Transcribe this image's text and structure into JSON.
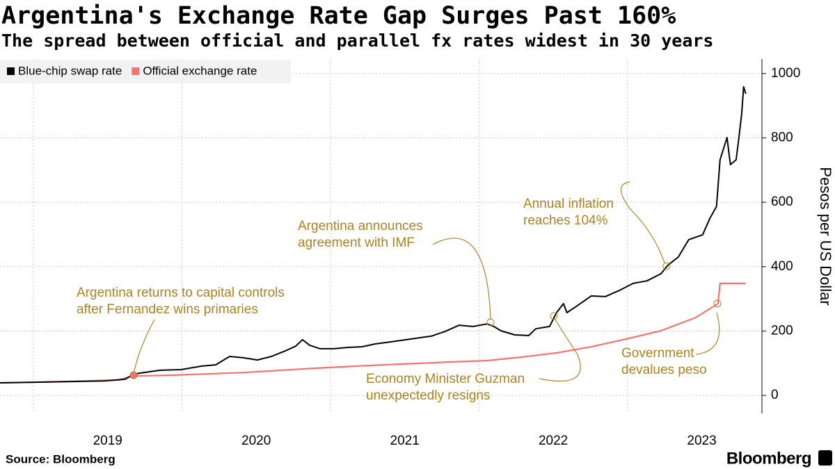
{
  "chart_data": {
    "type": "line",
    "title": "Argentina's Exchange Rate Gap Surges Past 160%",
    "subtitle": "The spread between official and parallel fx rates widest in 30 years",
    "y_label": "Pesos per US Dollar",
    "source": "Source: Bloomberg",
    "brand": "Bloomberg",
    "legend": "top-left",
    "grid": true,
    "xlim": [
      2018.775,
      2023.905
    ],
    "xticks": [
      2019,
      2020,
      2021,
      2022,
      2023
    ],
    "ylim": [
      -56,
      1045
    ],
    "yticks": [
      0,
      200,
      400,
      600,
      800,
      1000
    ],
    "series": [
      {
        "name": "Blue-chip swap rate",
        "color": "#000000",
        "x": [
          2018.775,
          2019.009,
          2019.243,
          2019.478,
          2019.618,
          2019.665,
          2019.712,
          2019.852,
          2019.993,
          2020.133,
          2020.227,
          2020.321,
          2020.414,
          2020.508,
          2020.602,
          2020.695,
          2020.766,
          2020.812,
          2020.859,
          2020.93,
          2021.023,
          2021.117,
          2021.211,
          2021.304,
          2021.398,
          2021.538,
          2021.679,
          2021.773,
          2021.866,
          2021.96,
          2022.054,
          2022.1,
          2022.147,
          2022.241,
          2022.335,
          2022.382,
          2022.475,
          2022.522,
          2022.569,
          2022.592,
          2022.663,
          2022.756,
          2022.85,
          2022.944,
          2023.037,
          2023.131,
          2023.225,
          2023.271,
          2023.342,
          2023.412,
          2023.506,
          2023.553,
          2023.599,
          2023.623,
          2023.67,
          2023.693,
          2023.731,
          2023.749,
          2023.768,
          2023.782,
          2023.796
        ],
        "values": [
          39,
          41,
          43,
          45,
          50,
          63,
          69,
          78,
          80,
          91,
          95,
          121,
          117,
          110,
          121,
          138,
          153,
          173,
          156,
          145,
          145,
          149,
          151,
          160,
          166,
          175,
          184,
          199,
          218,
          214,
          222,
          214,
          201,
          188,
          186,
          207,
          214,
          257,
          285,
          257,
          279,
          309,
          307,
          326,
          348,
          356,
          378,
          404,
          430,
          484,
          499,
          549,
          587,
          732,
          801,
          717,
          732,
          797,
          873,
          959,
          937
        ]
      },
      {
        "name": "Official exchange rate",
        "color": "#f87171",
        "x": [
          2018.775,
          2019.243,
          2019.571,
          2019.665,
          2019.946,
          2020.414,
          2020.883,
          2021.351,
          2021.819,
          2022.054,
          2022.288,
          2022.522,
          2022.756,
          2022.99,
          2023.225,
          2023.459,
          2023.609,
          2023.623,
          2023.796
        ],
        "values": [
          39,
          43,
          48,
          60,
          63,
          71,
          84,
          95,
          104,
          108,
          119,
          132,
          151,
          175,
          201,
          242,
          285,
          348,
          348
        ]
      }
    ],
    "annotations": [
      [
        "Argentina returns to capital controls",
        "after Fernandez wins primaries"
      ],
      [
        "Argentina announces",
        "agreement with IMF"
      ],
      [
        "Annual inflation",
        "reaches 104%"
      ],
      [
        "Economy Minister Guzman",
        "unexpectedly resigns"
      ],
      [
        "Government",
        "devalues peso"
      ]
    ]
  }
}
